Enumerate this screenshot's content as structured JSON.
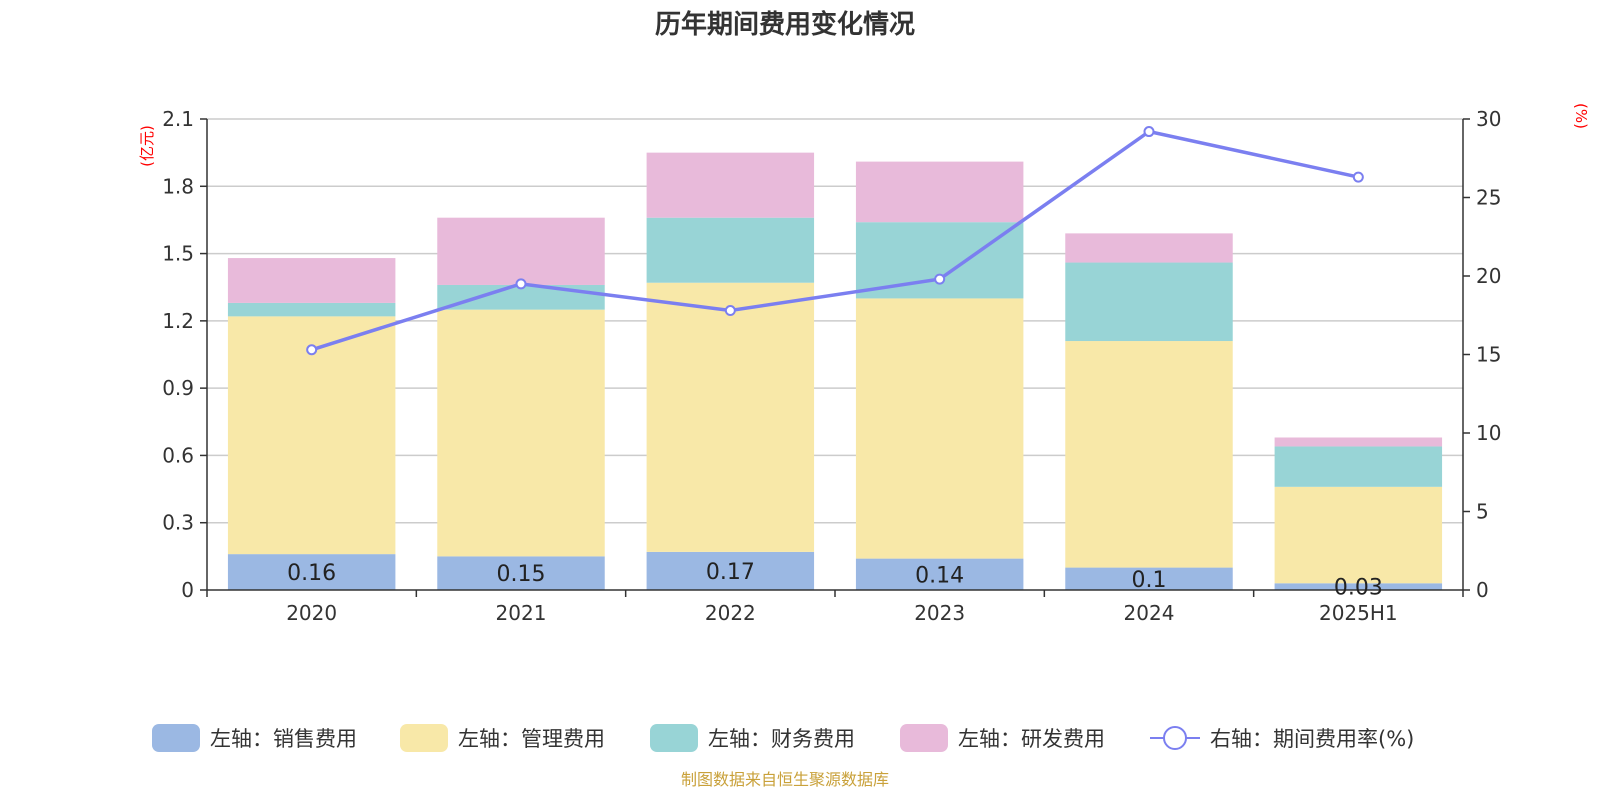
{
  "chart_data": {
    "type": "bar",
    "title": "历年期间费用变化情况",
    "categories": [
      "2020",
      "2021",
      "2022",
      "2023",
      "2024",
      "2025H1"
    ],
    "stacked": true,
    "left_axis": {
      "unit": "(亿元)",
      "ylim": [
        0,
        2.1
      ],
      "ticks": [
        "0",
        "0.3",
        "0.6",
        "0.9",
        "1.2",
        "1.5",
        "1.8",
        "2.1"
      ]
    },
    "right_axis": {
      "unit": "(%)",
      "ylim": [
        0,
        30
      ],
      "ticks": [
        "0",
        "5",
        "10",
        "15",
        "20",
        "25",
        "30"
      ]
    },
    "series": [
      {
        "name": "左轴：销售费用",
        "type": "bar",
        "axis": "left",
        "color": "#9bb8e3",
        "values": [
          0.16,
          0.15,
          0.17,
          0.14,
          0.1,
          0.03
        ],
        "labels": [
          "0.16",
          "0.15",
          "0.17",
          "0.14",
          "0.1",
          "0.03"
        ]
      },
      {
        "name": "左轴：管理费用",
        "type": "bar",
        "axis": "left",
        "color": "#f8e8a8",
        "values": [
          1.06,
          1.1,
          1.2,
          1.16,
          1.01,
          0.43
        ]
      },
      {
        "name": "左轴：财务费用",
        "type": "bar",
        "axis": "left",
        "color": "#98d4d6",
        "values": [
          0.06,
          0.11,
          0.29,
          0.34,
          0.35,
          0.18
        ]
      },
      {
        "name": "左轴：研发费用",
        "type": "bar",
        "axis": "left",
        "color": "#e8bada",
        "values": [
          0.2,
          0.3,
          0.29,
          0.27,
          0.13,
          0.04
        ]
      },
      {
        "name": "右轴：期间费用率(%)",
        "type": "line",
        "axis": "right",
        "color": "#7b7ff0",
        "values": [
          15.3,
          19.5,
          17.8,
          19.8,
          29.2,
          26.3
        ]
      }
    ],
    "grid": true,
    "legend_position": "bottom"
  },
  "source_note": "制图数据来自恒生聚源数据库"
}
